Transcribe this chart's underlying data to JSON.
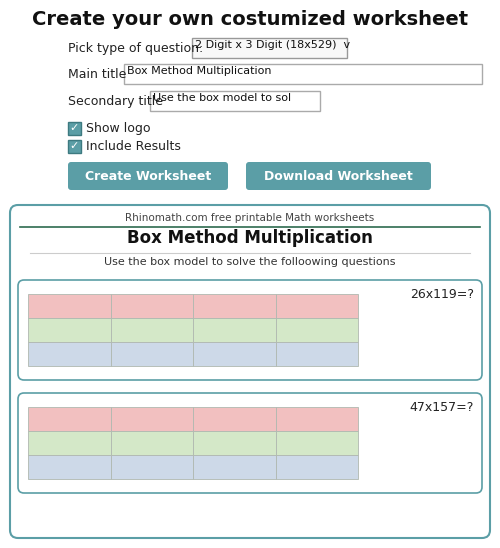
{
  "title": "Create your own costumized worksheet",
  "bg_color": "#ffffff",
  "preview_border": "#5b9ea6",
  "label_pick": "Pick type of question:",
  "dropdown_text": "2 Digit x 3 Digit (18x529)  v",
  "label_main": "Main title",
  "main_title_val": "Box Method Multiplication",
  "label_sec": "Secondary title",
  "sec_title_val": "Use the box model to sol",
  "check1": "Show logo",
  "check2": "Include Results",
  "btn1_text": "Create Worksheet",
  "btn2_text": "Download Worksheet",
  "btn_color": "#5b9ea6",
  "preview_logo": "Rhinomath.com free printable Math worksheets",
  "preview_title": "Box Method Multiplication",
  "preview_subtitle": "Use the box model to solve the folloowing questions",
  "problem1": "26x119=?",
  "problem2": "47x157=?",
  "row_colors": [
    "#f2c0c0",
    "#d4e8c8",
    "#cdd9e8"
  ],
  "grid_rows": 3,
  "grid_cols": 4,
  "divider_color": "#2e6b4f",
  "title_fontsize": 14,
  "body_fontsize": 9,
  "small_fontsize": 8,
  "btn_fontsize": 9,
  "preview_title_fontsize": 12,
  "preview_sub_fontsize": 8,
  "problem_fontsize": 9
}
